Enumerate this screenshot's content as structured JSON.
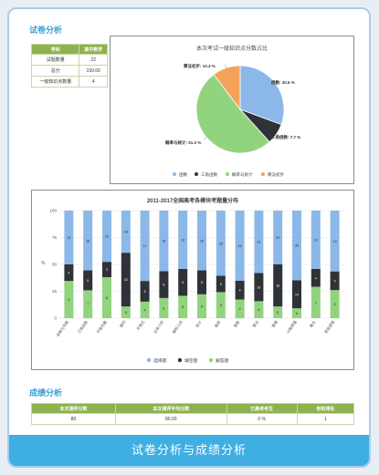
{
  "paper_section": {
    "title": "试卷分析"
  },
  "info_table": {
    "headers": [
      "学科",
      "高中数学"
    ],
    "rows": [
      [
        "试题数量",
        "22"
      ],
      [
        "总分",
        "150.00"
      ],
      [
        "一级知识点数量",
        "4"
      ]
    ]
  },
  "chart_data": [
    {
      "type": "pie",
      "title": "本次考试一级知识点分数占比",
      "categories": [
        "函数",
        "三角函数",
        "概率与统计",
        "算法初步"
      ],
      "values": [
        30.6,
        7.7,
        51.3,
        10.3
      ],
      "labels": [
        "函数: 30.6 %",
        "三角函数: 7.7 %",
        "概率与统计: 51.3 %",
        "算法初步: 10.3 %"
      ],
      "colors": [
        "#8bb8e8",
        "#2f3237",
        "#92d37d",
        "#f4a259"
      ],
      "legend_position": "bottom"
    },
    {
      "type": "bar",
      "title": "2011-2017全国高考各模块考题量分布",
      "ylabel": "%",
      "ylim": [
        0,
        100
      ],
      "yticks": [
        "0",
        "25",
        "50",
        "75",
        "100"
      ],
      "categories": [
        "函数与导数",
        "三角函数",
        "平面向量",
        "数列",
        "不等式",
        "立体几何",
        "解析几何",
        "统计",
        "概率",
        "复数",
        "算法",
        "推理",
        "计数原理",
        "集合",
        "常用逻辑"
      ],
      "series": [
        {
          "name": "选择题",
          "color": "#8bb8e8",
          "values": [
            13,
            15,
            10,
            18,
            17,
            18,
            13,
            15,
            20,
            15,
            22,
            23,
            35,
            13,
            13
          ]
        },
        {
          "name": "填空题",
          "color": "#2f3237",
          "values": [
            4,
            5,
            3,
            23,
            5,
            8,
            6,
            6,
            5,
            4,
            10,
            18,
            14,
            4,
            4
          ]
        },
        {
          "name": "解答题",
          "color": "#92d37d",
          "values": [
            9,
            7,
            8,
            5,
            4,
            6,
            5,
            6,
            8,
            4,
            6,
            5,
            5,
            7,
            6
          ]
        }
      ],
      "legend_position": "bottom"
    }
  ],
  "score_section": {
    "title": "成绩分析"
  },
  "score_table": {
    "headers": [
      "本次测评分数",
      "本次测评平均分数",
      "已高考考生",
      "你的排名"
    ],
    "rows": [
      [
        "80",
        "80.00",
        "0 %",
        "1"
      ]
    ]
  },
  "banner": {
    "text": "试卷分析与成绩分析"
  }
}
